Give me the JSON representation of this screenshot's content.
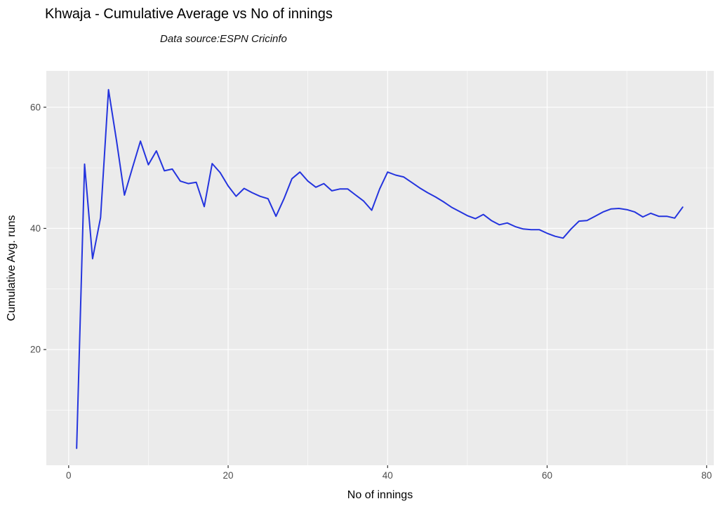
{
  "chart_data": {
    "type": "line",
    "title": "Khwaja - Cumulative Average vs No of innings",
    "subtitle": "Data source:ESPN Cricinfo",
    "xlabel": "No of innings",
    "ylabel": "Cumulative Avg. runs",
    "legend": "none",
    "grid": "white major and minor gridlines on gray panel (ggplot2 style)",
    "xlim": [
      -2.8,
      80.9
    ],
    "ylim": [
      0.9,
      66.0
    ],
    "x_ticks": [
      0,
      20,
      40,
      60,
      80
    ],
    "x_minor_ticks": [
      10,
      30,
      50,
      70
    ],
    "y_ticks": [
      20,
      40,
      60
    ],
    "y_minor_ticks": [
      10,
      30,
      50
    ],
    "series": [
      {
        "name": "cumulative-average",
        "x_start": 1,
        "x_step": 1,
        "values": [
          3.7,
          50.6,
          35.0,
          41.8,
          62.9,
          54.5,
          45.5,
          50.0,
          54.4,
          50.5,
          52.8,
          49.5,
          49.8,
          47.8,
          47.4,
          47.6,
          43.6,
          50.7,
          49.2,
          47.0,
          45.3,
          46.6,
          45.9,
          45.3,
          44.9,
          42.0,
          44.9,
          48.2,
          49.3,
          47.8,
          46.8,
          47.4,
          46.2,
          46.5,
          46.5,
          45.5,
          44.5,
          43.0,
          46.5,
          49.3,
          48.8,
          48.5,
          47.6,
          46.7,
          45.9,
          45.2,
          44.4,
          43.5,
          42.8,
          42.1,
          41.6,
          42.3,
          41.3,
          40.6,
          40.9,
          40.3,
          39.9,
          39.8,
          39.8,
          39.2,
          38.7,
          38.4,
          39.9,
          41.2,
          41.3,
          42.0,
          42.7,
          43.2,
          43.3,
          43.1,
          42.7,
          41.9,
          42.5,
          42.0,
          42.0,
          41.7,
          43.5
        ]
      }
    ],
    "colors": {
      "line": "#2434DE",
      "panel_bg": "#EBEBEB",
      "gridline": "#FFFFFF",
      "tick_text": "#4D4D4D",
      "tick_mark": "#333333",
      "title_text": "#000000"
    }
  }
}
